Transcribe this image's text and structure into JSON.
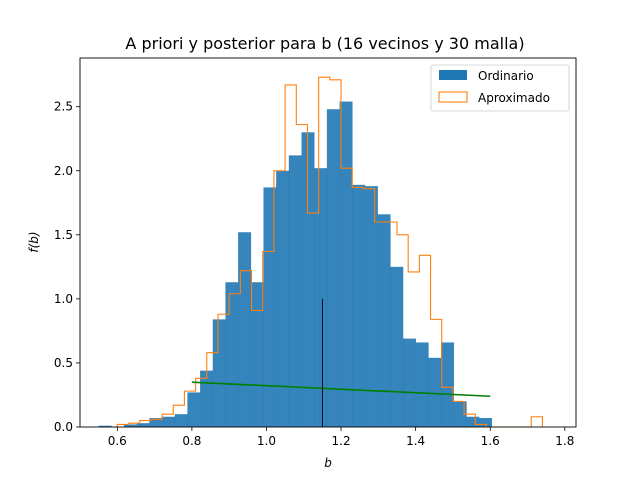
{
  "chart_data": {
    "type": "histogram",
    "title": "A priori y posterior para b (16 vecinos y 30 malla)",
    "xlabel": "b",
    "ylabel": "f(b)",
    "xlim": [
      0.5,
      1.83
    ],
    "ylim": [
      0,
      2.88
    ],
    "xticks": [
      "0.6",
      "0.8",
      "1.0",
      "1.2",
      "1.4",
      "1.6",
      "1.8"
    ],
    "yticks": [
      "0.0",
      "0.5",
      "1.0",
      "1.5",
      "2.0",
      "2.5"
    ],
    "grid": false,
    "legend_position": "top-right",
    "series": [
      {
        "name": "Ordinario",
        "style": "filled-bars",
        "color": "#1f77b4",
        "bin_edges": [
          0.55,
          0.584,
          0.618,
          0.652,
          0.686,
          0.72,
          0.754,
          0.788,
          0.822,
          0.856,
          0.89,
          0.924,
          0.958,
          0.992,
          1.026,
          1.06,
          1.094,
          1.128,
          1.162,
          1.196,
          1.23,
          1.264,
          1.298,
          1.332,
          1.366,
          1.4,
          1.434,
          1.468,
          1.502,
          1.536,
          1.57,
          1.604
        ],
        "density": [
          0.01,
          0.0,
          0.02,
          0.03,
          0.07,
          0.08,
          0.1,
          0.27,
          0.44,
          0.84,
          1.13,
          1.52,
          1.13,
          1.87,
          2.0,
          2.12,
          2.3,
          2.02,
          2.48,
          2.54,
          1.89,
          1.88,
          1.66,
          1.25,
          0.69,
          0.66,
          0.54,
          0.66,
          0.2,
          0.08,
          0.07
        ]
      },
      {
        "name": "Aproximado",
        "style": "step",
        "color": "#ff7f0e",
        "bin_edges": [
          0.6,
          0.63,
          0.66,
          0.69,
          0.72,
          0.75,
          0.78,
          0.81,
          0.84,
          0.87,
          0.9,
          0.93,
          0.96,
          0.99,
          1.02,
          1.05,
          1.08,
          1.11,
          1.14,
          1.17,
          1.2,
          1.23,
          1.26,
          1.29,
          1.32,
          1.35,
          1.38,
          1.41,
          1.44,
          1.47,
          1.5,
          1.53,
          1.56,
          1.59,
          1.62,
          1.65,
          1.68,
          1.71,
          1.74
        ],
        "density": [
          0.02,
          0.03,
          0.05,
          0.06,
          0.1,
          0.17,
          0.28,
          0.38,
          0.58,
          0.88,
          1.04,
          1.22,
          0.91,
          1.37,
          2.0,
          2.67,
          2.36,
          1.67,
          2.73,
          2.71,
          2.02,
          1.87,
          1.86,
          1.6,
          1.6,
          1.5,
          1.21,
          1.34,
          0.84,
          0.31,
          0.2,
          0.1,
          0.02,
          0.0,
          0.0,
          0.0,
          0.0,
          0.08
        ]
      },
      {
        "name": "",
        "style": "line",
        "color": "#008000",
        "x": [
          0.8,
          1.6
        ],
        "y": [
          0.35,
          0.24
        ]
      },
      {
        "name": "",
        "style": "vline",
        "color": "#000000",
        "x": 1.15,
        "y": [
          0,
          1.0
        ]
      }
    ]
  }
}
